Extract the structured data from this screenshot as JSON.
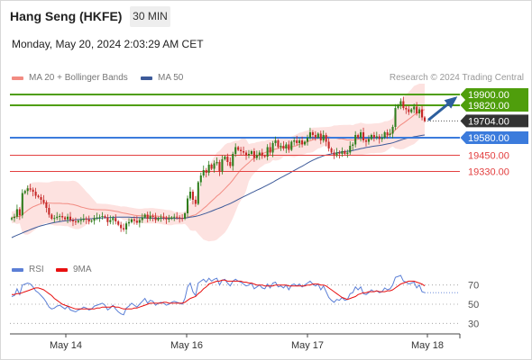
{
  "header": {
    "title": "Hang Seng (HKFE)",
    "timeframe": "30 MIN",
    "timestamp": "Monday, May 20, 2024 2:03:29 AM CET",
    "credit": "Research © 2024 Trading Central"
  },
  "legend": {
    "bollinger_label": "MA 20 + Bollinger Bands",
    "bollinger_color": "#f28b82",
    "ma50_label": "MA 50",
    "ma50_color": "#3d5a99",
    "rsi_label": "RSI",
    "rsi_color": "#5b7fd6",
    "rsi_ma_label": "9MA",
    "rsi_ma_color": "#e81010"
  },
  "chart_data": [
    {
      "type": "candlestick",
      "ylim": [
        18720,
        19960
      ],
      "levels": [
        {
          "label": "19900.00",
          "value": 19900,
          "color": "#4f9e0c",
          "badge": true
        },
        {
          "label": "19820.00",
          "value": 19820,
          "color": "#4f9e0c",
          "badge": true
        },
        {
          "label": "19704.00",
          "value": 19704,
          "color": "#333333",
          "badge": true,
          "current": true
        },
        {
          "label": "19580.00",
          "value": 19580,
          "color": "#3b7bdc",
          "badge": true
        },
        {
          "label": "19450.00",
          "value": 19450,
          "color": "#e34040",
          "badge": false
        },
        {
          "label": "19330.00",
          "value": 19330,
          "color": "#e34040",
          "badge": false
        }
      ],
      "x_ticks": [
        "May 14",
        "May 16",
        "May 17",
        "May 18"
      ],
      "closes": [
        18985,
        18995,
        19050,
        19005,
        19170,
        19185,
        19205,
        19195,
        19180,
        19150,
        19140,
        19120,
        19100,
        19060,
        19010,
        18980,
        18985,
        18995,
        19000,
        18990,
        18975,
        18995,
        18970,
        18960,
        18955,
        18965,
        18970,
        18980,
        18975,
        18960,
        18965,
        18985,
        18990,
        18995,
        19000,
        18990,
        18955,
        18970,
        18985,
        18960,
        18935,
        18910,
        18900,
        18945,
        18955,
        18975,
        18965,
        18950,
        18970,
        18990,
        19010,
        18980,
        19000,
        18995,
        18970,
        18985,
        18990,
        18985,
        18975,
        18980,
        18990,
        18995,
        18990,
        18985,
        18980,
        19020,
        19130,
        19180,
        19120,
        19090,
        19250,
        19300,
        19340,
        19320,
        19380,
        19350,
        19390,
        19400,
        19330,
        19420,
        19440,
        19400,
        19370,
        19460,
        19510,
        19490,
        19480,
        19470,
        19450,
        19460,
        19480,
        19430,
        19450,
        19470,
        19445,
        19440,
        19510,
        19470,
        19540,
        19560,
        19510,
        19520,
        19500,
        19530,
        19490,
        19550,
        19560,
        19540,
        19560,
        19530,
        19550,
        19580,
        19620,
        19600,
        19580,
        19610,
        19560,
        19600,
        19550,
        19500,
        19470,
        19450,
        19470,
        19460,
        19480,
        19460,
        19470,
        19520,
        19530,
        19600,
        19580,
        19620,
        19560,
        19550,
        19570,
        19600,
        19580,
        19590,
        19570,
        19580,
        19620,
        19600,
        19610,
        19660,
        19800,
        19820,
        19850,
        19800,
        19790,
        19770,
        19790,
        19810,
        19760,
        19790,
        19730,
        19704
      ],
      "moving_averages": [
        {
          "name": "MA 20 + Bollinger Bands",
          "color": "#f28b82",
          "values": [
            18990,
            18992,
            18997,
            18996,
            19012,
            19027,
            19043,
            19056,
            19068,
            19076,
            19084,
            19091,
            19096,
            19098,
            19096,
            19095,
            19094,
            19094,
            19094,
            19093,
            19092,
            19091,
            19087,
            19085,
            19080,
            19074,
            19067,
            19062,
            19057,
            19053,
            19050,
            19048,
            19047,
            19047,
            19046,
            19046,
            19044,
            19041,
            19038,
            19035,
            19031,
            19026,
            19021,
            19018,
            19014,
            19010,
            19006,
            19003,
            19002,
            19001,
            19001,
            19001,
            19002,
            19002,
            19001,
            18999,
            18996,
            18993,
            18990,
            18988,
            18986,
            18984,
            18983,
            18983,
            18983,
            18985,
            18991,
            18998,
            19004,
            19009,
            19023,
            19039,
            19056,
            19072,
            19092,
            19110,
            19128,
            19147,
            19163,
            19182,
            19202,
            19223,
            19243,
            19267,
            19294,
            19319,
            19343,
            19361,
            19378,
            19395,
            19415,
            19428,
            19441,
            19453,
            19462,
            19469,
            19477,
            19481,
            19490,
            19496,
            19500,
            19505,
            19508,
            19509,
            19510,
            19513,
            19516,
            19523,
            19532,
            19537,
            19543,
            19550,
            19557,
            19564,
            19571,
            19578,
            19581,
            19588,
            19589,
            19586,
            19583,
            19580,
            19576,
            19572,
            19571,
            19567,
            19563,
            19564,
            19562,
            19566,
            19568,
            19571,
            19571,
            19571,
            19572,
            19574,
            19575,
            19577,
            19578,
            19581,
            19588,
            19595,
            19607,
            19619,
            19637,
            19657,
            19675,
            19688,
            19702,
            19717,
            19731,
            19748,
            19761,
            19774,
            19782,
            19788
          ]
        },
        {
          "name": "MA 50",
          "color": "#3d5a99",
          "values": [
            18840,
            18849,
            18858,
            18866,
            18875,
            18883,
            18891,
            18899,
            18907,
            18914,
            18921,
            18927,
            18933,
            18938,
            18943,
            18947,
            18951,
            18955,
            18958,
            18961,
            18964,
            18966,
            18968,
            18970,
            18972,
            18974,
            18975,
            18977,
            18978,
            18979,
            18980,
            18982,
            18983,
            18984,
            18986,
            18987,
            18988,
            18989,
            18990,
            18991,
            18991,
            18991,
            18991,
            18991,
            18991,
            18990,
            18990,
            18989,
            18988,
            18987,
            18986,
            18985,
            18984,
            18984,
            18983,
            18983,
            18983,
            18983,
            18983,
            18983,
            18983,
            18983,
            18983,
            18983,
            18983,
            18984,
            18987,
            18991,
            18994,
            18997,
            19002,
            19008,
            19015,
            19021,
            19029,
            19036,
            19044,
            19052,
            19059,
            19067,
            19076,
            19084,
            19092,
            19102,
            19112,
            19123,
            19133,
            19143,
            19152,
            19162,
            19172,
            19181,
            19191,
            19200,
            19209,
            19219,
            19229,
            19239,
            19250,
            19262,
            19273,
            19284,
            19294,
            19305,
            19315,
            19326,
            19337,
            19348,
            19359,
            19369,
            19380,
            19392,
            19403,
            19413,
            19422,
            19431,
            19438,
            19446,
            19452,
            19456,
            19460,
            19464,
            19468,
            19471,
            19475,
            19477,
            19479,
            19482,
            19485,
            19490,
            19494,
            19499,
            19503,
            19507,
            19510,
            19514,
            19517,
            19520,
            19523,
            19526,
            19530,
            19534,
            19537,
            19542,
            19549,
            19556,
            19563,
            19569,
            19574,
            19578,
            19582,
            19587,
            19590,
            19594,
            19597,
            19600
          ]
        }
      ]
    },
    {
      "type": "line",
      "ylim": [
        20,
        80
      ],
      "y_ticks": [
        70,
        50,
        30
      ],
      "x_ticks": [
        "May 14",
        "May 16",
        "May 17",
        "May 18"
      ],
      "series": [
        {
          "name": "RSI",
          "values": [
            58,
            59,
            66,
            60,
            70,
            71,
            72,
            71,
            68,
            64,
            62,
            59,
            56,
            52,
            47,
            45,
            46,
            48,
            49,
            47,
            45,
            48,
            44,
            43,
            42,
            44,
            45,
            47,
            46,
            44,
            45,
            48,
            49,
            50,
            51,
            49,
            44,
            46,
            49,
            45,
            42,
            40,
            39,
            46,
            48,
            51,
            49,
            47,
            50,
            53,
            56,
            51,
            54,
            53,
            49,
            51,
            52,
            51,
            49,
            50,
            52,
            53,
            52,
            51,
            50,
            56,
            68,
            72,
            63,
            59,
            72,
            74,
            76,
            73,
            77,
            74,
            76,
            77,
            70,
            75,
            76,
            72,
            69,
            74,
            76,
            74,
            73,
            71,
            69,
            70,
            72,
            66,
            68,
            70,
            67,
            66,
            71,
            67,
            72,
            73,
            68,
            69,
            67,
            70,
            65,
            70,
            71,
            69,
            71,
            68,
            70,
            72,
            74,
            71,
            69,
            71,
            65,
            69,
            63,
            57,
            54,
            52,
            55,
            54,
            57,
            54,
            55,
            61,
            62,
            68,
            65,
            68,
            61,
            60,
            62,
            65,
            63,
            64,
            62,
            63,
            67,
            65,
            66,
            70,
            78,
            79,
            80,
            74,
            73,
            71,
            72,
            73,
            67,
            70,
            63,
            62
          ]
        },
        {
          "name": "9MA",
          "values": [
            60,
            60,
            61,
            61,
            62,
            63,
            64,
            65,
            66,
            67,
            67,
            66,
            65,
            63,
            61,
            59,
            56,
            54,
            52,
            50,
            49,
            48,
            47,
            46,
            45,
            45,
            45,
            45,
            45,
            45,
            45,
            45,
            46,
            46,
            47,
            47,
            47,
            47,
            48,
            47,
            47,
            46,
            45,
            45,
            45,
            45,
            46,
            46,
            47,
            48,
            49,
            50,
            51,
            51,
            51,
            51,
            51,
            52,
            52,
            51,
            51,
            51,
            51,
            51,
            51,
            52,
            54,
            56,
            57,
            58,
            61,
            63,
            66,
            68,
            71,
            72,
            73,
            74,
            74,
            75,
            75,
            74,
            74,
            74,
            74,
            74,
            74,
            73,
            73,
            72,
            72,
            71,
            70,
            70,
            70,
            69,
            69,
            69,
            69,
            70,
            70,
            70,
            70,
            70,
            69,
            69,
            69,
            69,
            69,
            69,
            69,
            70,
            70,
            71,
            71,
            71,
            70,
            70,
            69,
            67,
            65,
            63,
            61,
            59,
            57,
            56,
            55,
            56,
            57,
            58,
            60,
            61,
            62,
            62,
            63,
            63,
            63,
            64,
            63,
            63,
            63,
            64,
            64,
            65,
            67,
            69,
            71,
            72,
            73,
            74,
            74,
            74,
            73,
            72,
            71,
            69
          ]
        }
      ]
    }
  ]
}
